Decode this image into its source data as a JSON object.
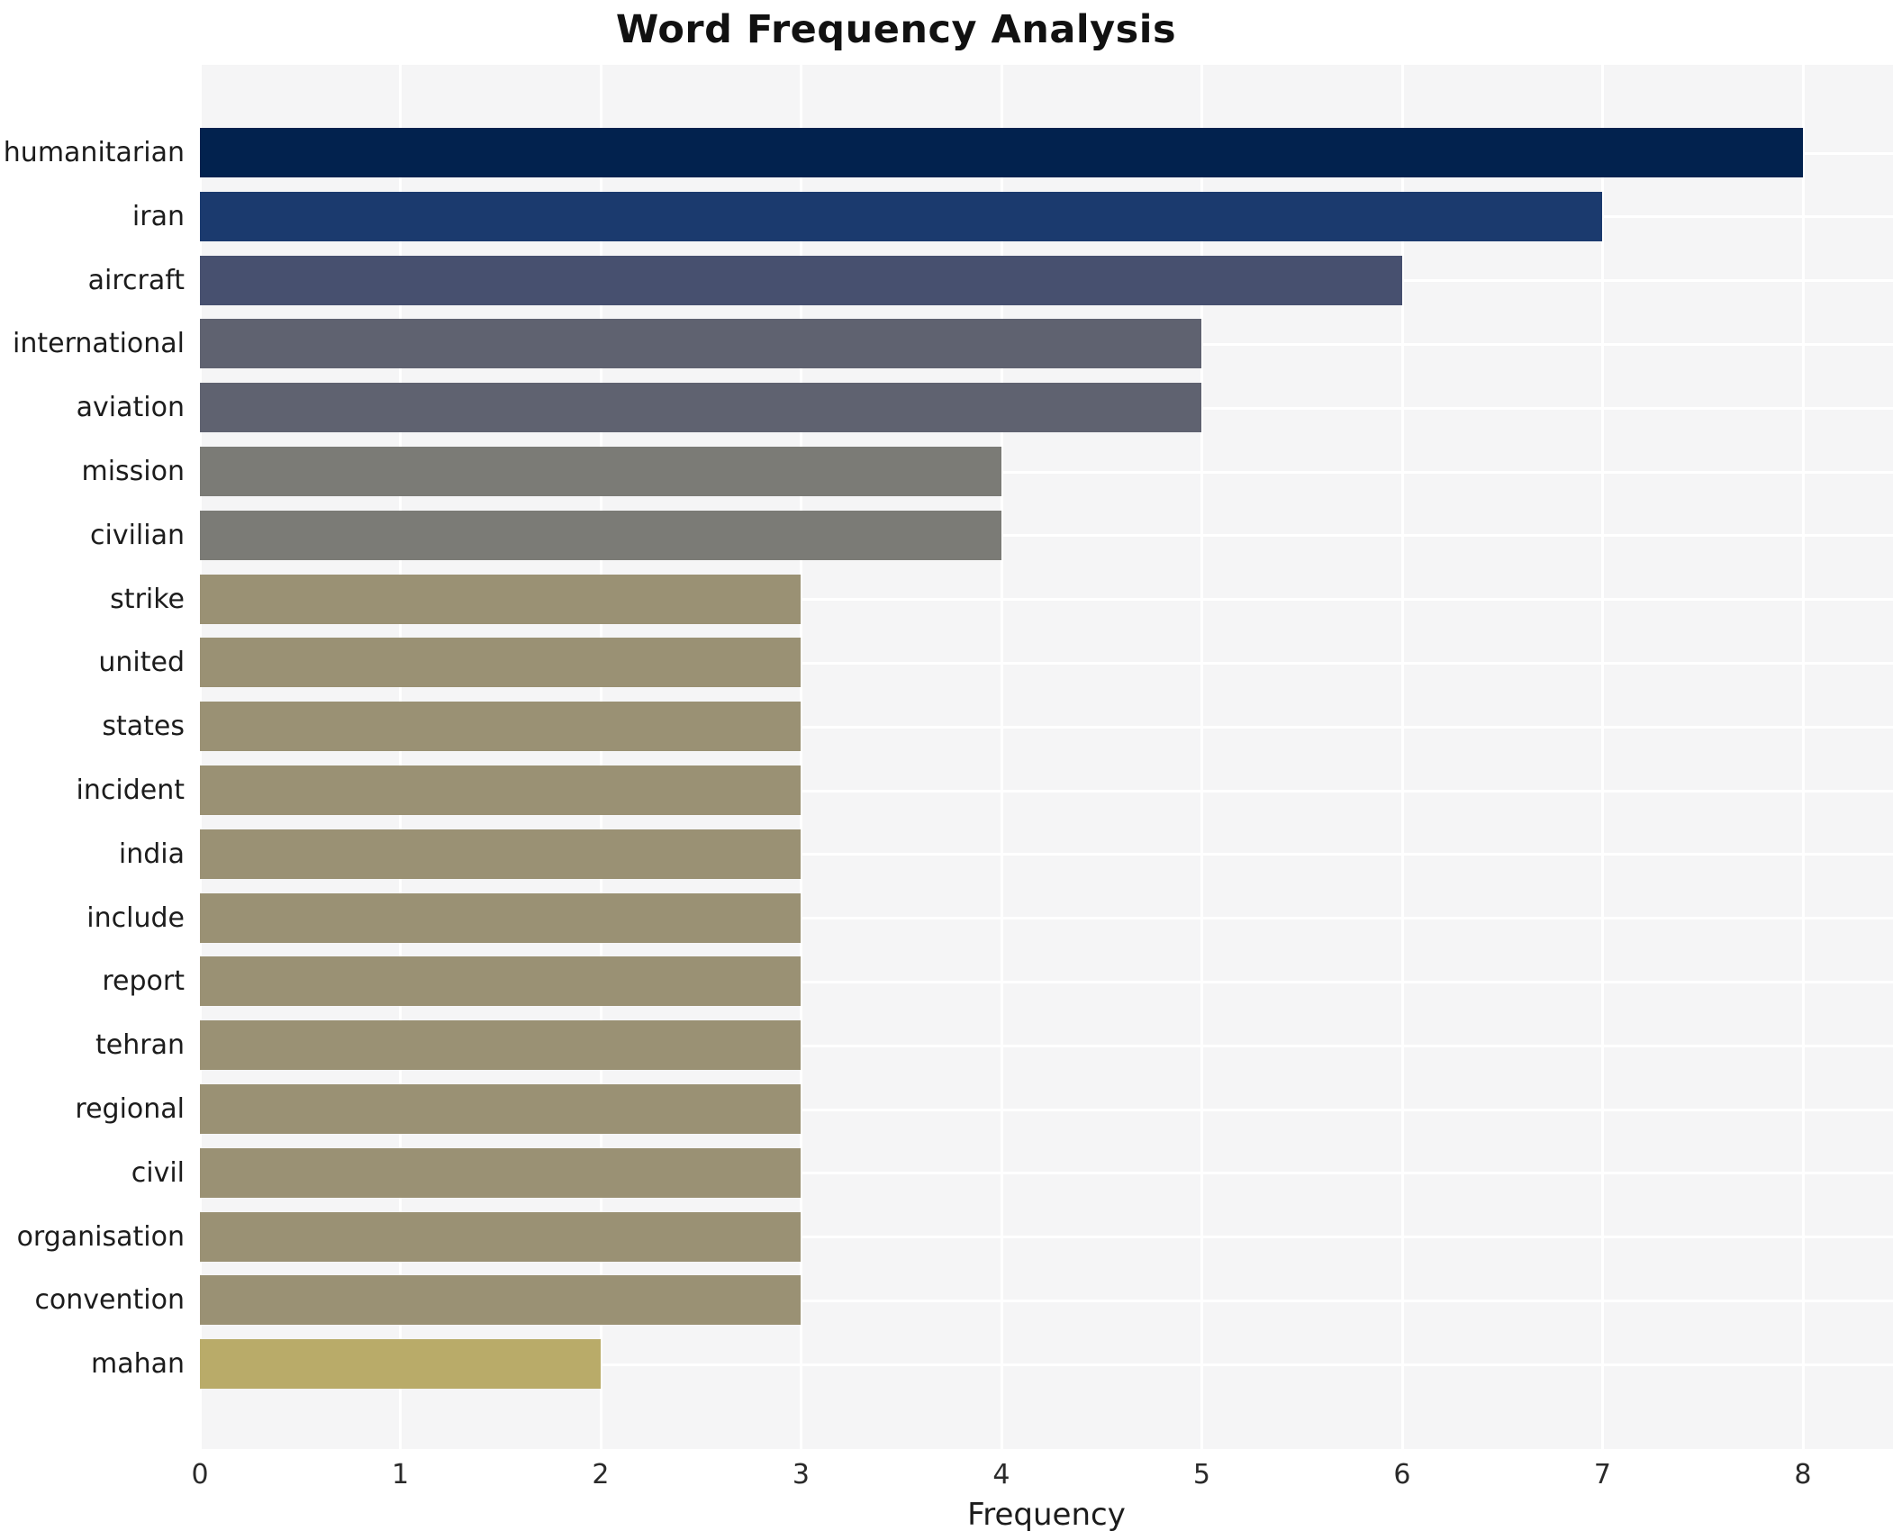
{
  "title": "Word Frequency Analysis",
  "chart_data": {
    "type": "bar",
    "orientation": "horizontal",
    "title": "Word Frequency Analysis",
    "xlabel": "Frequency",
    "ylabel": "",
    "xlim": [
      0,
      8.45
    ],
    "xticks": [
      0,
      1,
      2,
      3,
      4,
      5,
      6,
      7,
      8
    ],
    "grid": true,
    "legend": "none",
    "plot_background": "#f5f5f6",
    "grid_color": "#ffffff",
    "categories": [
      "humanitarian",
      "iran",
      "aircraft",
      "international",
      "aviation",
      "mission",
      "civilian",
      "strike",
      "united",
      "states",
      "incident",
      "india",
      "include",
      "report",
      "tehran",
      "regional",
      "civil",
      "organisation",
      "convention",
      "mahan"
    ],
    "values": [
      8,
      7,
      6,
      5,
      5,
      4,
      4,
      3,
      3,
      3,
      3,
      3,
      3,
      3,
      3,
      3,
      3,
      3,
      3,
      2
    ],
    "bar_colors": [
      "#02224e",
      "#1b3a6e",
      "#47506f",
      "#5f6270",
      "#5f6270",
      "#7b7b76",
      "#7b7b76",
      "#9a9174",
      "#9a9174",
      "#9a9174",
      "#9a9174",
      "#9a9174",
      "#9a9174",
      "#9a9174",
      "#9a9174",
      "#9a9174",
      "#9a9174",
      "#9a9174",
      "#9a9174",
      "#b9ab69"
    ]
  }
}
